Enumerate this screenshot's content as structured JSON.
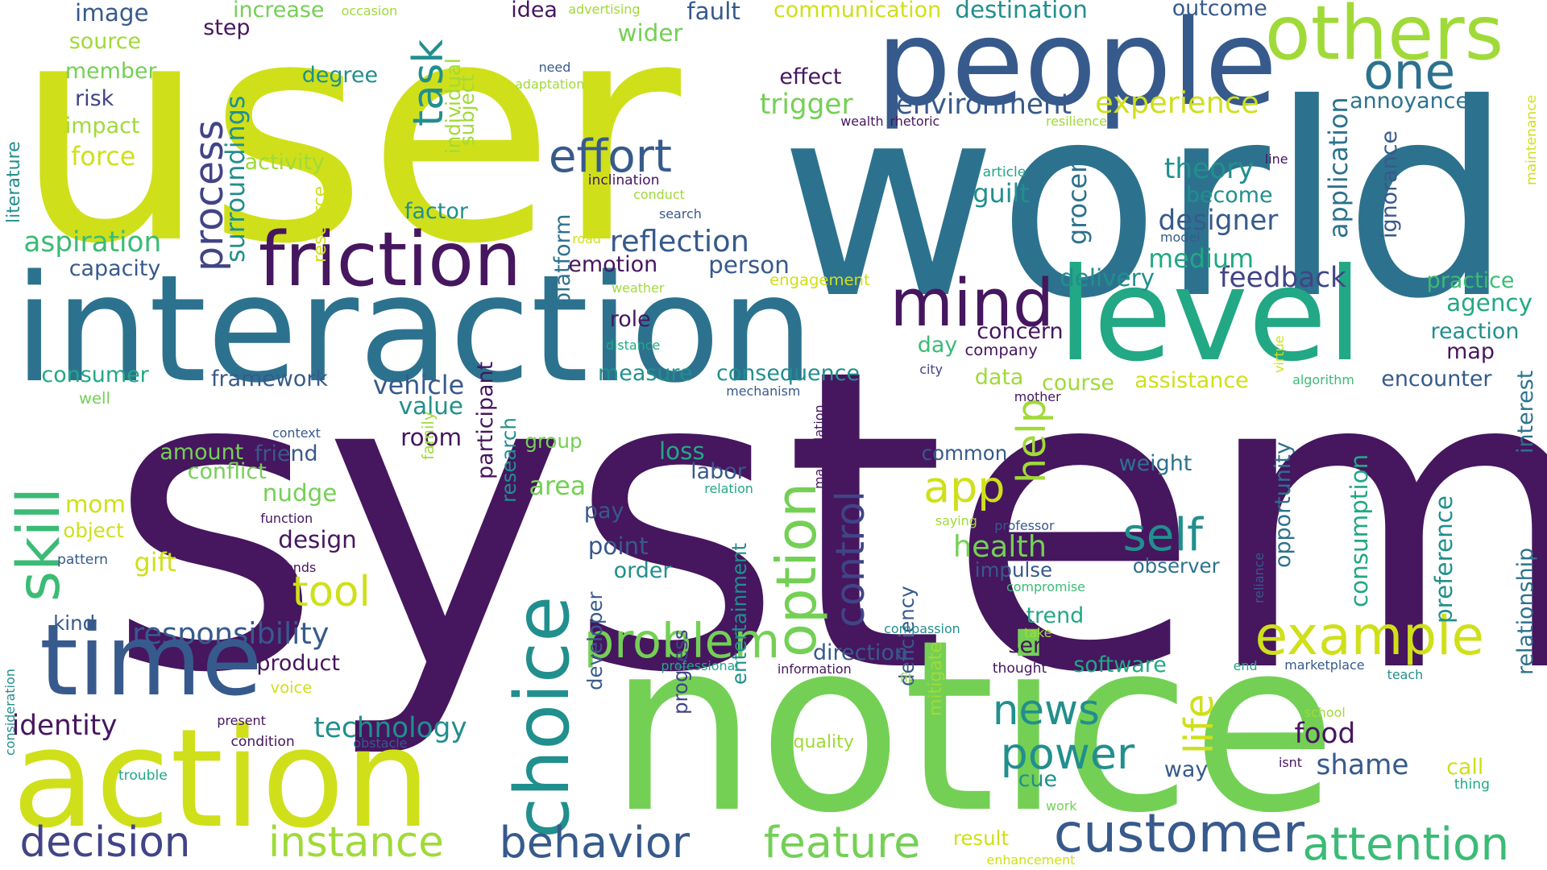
{
  "words": [
    {
      "text": "system",
      "color": "#46165f"
    },
    {
      "text": "user",
      "color": "#cfe01a"
    },
    {
      "text": "world",
      "color": "#2c728e"
    },
    {
      "text": "notice",
      "color": "#74d055"
    },
    {
      "text": "interaction",
      "color": "#2c728e"
    },
    {
      "text": "action",
      "color": "#cfe01a"
    },
    {
      "text": "people",
      "color": "#375a8c"
    },
    {
      "text": "level",
      "color": "#22a884"
    },
    {
      "text": "time",
      "color": "#375a8c"
    },
    {
      "text": "friction",
      "color": "#46165f"
    },
    {
      "text": "choice",
      "color": "#218f8d"
    },
    {
      "text": "others",
      "color": "#a0da39"
    },
    {
      "text": "mind",
      "color": "#46165f"
    },
    {
      "text": "customer",
      "color": "#375a8c"
    },
    {
      "text": "attention",
      "color": "#3bbb75"
    },
    {
      "text": "behavior",
      "color": "#375a8c"
    },
    {
      "text": "decision",
      "color": "#414487"
    },
    {
      "text": "instance",
      "color": "#a0da39"
    },
    {
      "text": "feature",
      "color": "#74d055"
    },
    {
      "text": "option",
      "color": "#74d055"
    },
    {
      "text": "example",
      "color": "#cfe01a"
    },
    {
      "text": "problem",
      "color": "#74d055"
    },
    {
      "text": "one",
      "color": "#2c728e"
    },
    {
      "text": "skill",
      "color": "#3bbb75"
    },
    {
      "text": "effort",
      "color": "#375a8c"
    },
    {
      "text": "power",
      "color": "#218f8d"
    },
    {
      "text": "news",
      "color": "#218f8d"
    },
    {
      "text": "self",
      "color": "#218f8d"
    },
    {
      "text": "app",
      "color": "#cfe01a"
    },
    {
      "text": "tool",
      "color": "#cfe01a"
    },
    {
      "text": "task",
      "color": "#218f8d"
    },
    {
      "text": "process",
      "color": "#414487"
    },
    {
      "text": "help",
      "color": "#a0da39"
    },
    {
      "text": "life",
      "color": "#cfe01a"
    },
    {
      "text": "control",
      "color": "#414487"
    },
    {
      "text": "responsibility",
      "color": "#375a8c"
    },
    {
      "text": "reflection",
      "color": "#375a8c"
    },
    {
      "text": "experience",
      "color": "#cfe01a"
    },
    {
      "text": "environment",
      "color": "#375a8c"
    },
    {
      "text": "health",
      "color": "#74d055"
    },
    {
      "text": "feedback",
      "color": "#414487"
    },
    {
      "text": "food",
      "color": "#46165f"
    },
    {
      "text": "shame",
      "color": "#375a8c"
    },
    {
      "text": "trigger",
      "color": "#74d055"
    },
    {
      "text": "surroundings",
      "color": "#218f8d"
    },
    {
      "text": "aspiration",
      "color": "#3bbb75"
    },
    {
      "text": "technology",
      "color": "#218f8d"
    },
    {
      "text": "identity",
      "color": "#46165f"
    },
    {
      "text": "theory",
      "color": "#218f8d"
    },
    {
      "text": "designer",
      "color": "#375a8c"
    },
    {
      "text": "guilt",
      "color": "#218f8d"
    },
    {
      "text": "become",
      "color": "#218f8d"
    },
    {
      "text": "medium",
      "color": "#22a884"
    },
    {
      "text": "delivery",
      "color": "#218f8d"
    },
    {
      "text": "grocery",
      "color": "#2c728e"
    },
    {
      "text": "application",
      "color": "#2c728e"
    },
    {
      "text": "ignorance",
      "color": "#375a8c"
    },
    {
      "text": "annoyance",
      "color": "#2c728e"
    },
    {
      "text": "outcome",
      "color": "#375a8c"
    },
    {
      "text": "destination",
      "color": "#218f8d"
    },
    {
      "text": "communication",
      "color": "#cfe01a"
    },
    {
      "text": "fault",
      "color": "#375a8c"
    },
    {
      "text": "idea",
      "color": "#46165f"
    },
    {
      "text": "advertising",
      "color": "#a0da39"
    },
    {
      "text": "occasion",
      "color": "#a0da39"
    },
    {
      "text": "increase",
      "color": "#74d055"
    },
    {
      "text": "image",
      "color": "#375a8c"
    },
    {
      "text": "source",
      "color": "#a0da39"
    },
    {
      "text": "member",
      "color": "#74d055"
    },
    {
      "text": "risk",
      "color": "#414487"
    },
    {
      "text": "impact",
      "color": "#a0da39"
    },
    {
      "text": "force",
      "color": "#cfe01a"
    },
    {
      "text": "step",
      "color": "#46165f"
    },
    {
      "text": "wider",
      "color": "#74d055"
    },
    {
      "text": "degree",
      "color": "#218f8d"
    },
    {
      "text": "activity",
      "color": "#a0da39"
    },
    {
      "text": "individual",
      "color": "#a0da39"
    },
    {
      "text": "subject",
      "color": "#a0da39"
    },
    {
      "text": "effect",
      "color": "#46165f"
    },
    {
      "text": "need",
      "color": "#375a8c"
    },
    {
      "text": "adaptation",
      "color": "#a0da39"
    },
    {
      "text": "literature",
      "color": "#218f8d"
    },
    {
      "text": "capacity",
      "color": "#375a8c"
    },
    {
      "text": "factor",
      "color": "#218f8d"
    },
    {
      "text": "inclination",
      "color": "#46165f"
    },
    {
      "text": "conduct",
      "color": "#a0da39"
    },
    {
      "text": "search",
      "color": "#375a8c"
    },
    {
      "text": "wealth",
      "color": "#46165f"
    },
    {
      "text": "rhetoric",
      "color": "#46165f"
    },
    {
      "text": "resilience",
      "color": "#a0da39"
    },
    {
      "text": "article",
      "color": "#22a884"
    },
    {
      "text": "line",
      "color": "#46165f"
    },
    {
      "text": "model",
      "color": "#375a8c"
    },
    {
      "text": "road",
      "color": "#cfe01a"
    },
    {
      "text": "emotion",
      "color": "#46165f"
    },
    {
      "text": "person",
      "color": "#375a8c"
    },
    {
      "text": "engagement",
      "color": "#cfe01a"
    },
    {
      "text": "weather",
      "color": "#a0da39"
    },
    {
      "text": "distance",
      "color": "#22a884"
    },
    {
      "text": "role",
      "color": "#46165f"
    },
    {
      "text": "measure",
      "color": "#218f8d"
    },
    {
      "text": "consequence",
      "color": "#218f8d"
    },
    {
      "text": "concern",
      "color": "#46165f"
    },
    {
      "text": "day",
      "color": "#3bbb75"
    },
    {
      "text": "company",
      "color": "#46165f"
    },
    {
      "text": "city",
      "color": "#414487"
    },
    {
      "text": "data",
      "color": "#a0da39"
    },
    {
      "text": "course",
      "color": "#a0da39"
    },
    {
      "text": "assistance",
      "color": "#cfe01a"
    },
    {
      "text": "mother",
      "color": "#46165f"
    },
    {
      "text": "virtue",
      "color": "#cfe01a"
    },
    {
      "text": "algorithm",
      "color": "#3bbb75"
    },
    {
      "text": "practice",
      "color": "#3bbb75"
    },
    {
      "text": "agency",
      "color": "#22a884"
    },
    {
      "text": "reaction",
      "color": "#218f8d"
    },
    {
      "text": "map",
      "color": "#46165f"
    },
    {
      "text": "encounter",
      "color": "#375a8c"
    },
    {
      "text": "maintenance",
      "color": "#cfe01a"
    },
    {
      "text": "interest",
      "color": "#2c728e"
    },
    {
      "text": "relationship",
      "color": "#2c728e"
    },
    {
      "text": "preference",
      "color": "#218f8d"
    },
    {
      "text": "consumption",
      "color": "#22a884"
    },
    {
      "text": "opportunity",
      "color": "#2c728e"
    },
    {
      "text": "weight",
      "color": "#2c728e"
    },
    {
      "text": "common",
      "color": "#375a8c"
    },
    {
      "text": "observer",
      "color": "#2c728e"
    },
    {
      "text": "impulse",
      "color": "#375a8c"
    },
    {
      "text": "compromise",
      "color": "#3bbb75"
    },
    {
      "text": "professor",
      "color": "#375a8c"
    },
    {
      "text": "saying",
      "color": "#a0da39"
    },
    {
      "text": "reliance",
      "color": "#375a8c"
    },
    {
      "text": "trend",
      "color": "#22a884"
    },
    {
      "text": "take",
      "color": "#a0da39"
    },
    {
      "text": "service",
      "color": "#46165f"
    },
    {
      "text": "software",
      "color": "#22a884"
    },
    {
      "text": "thought",
      "color": "#46165f"
    },
    {
      "text": "end",
      "color": "#22a884"
    },
    {
      "text": "marketplace",
      "color": "#375a8c"
    },
    {
      "text": "teach",
      "color": "#218f8d"
    },
    {
      "text": "school",
      "color": "#a0da39"
    },
    {
      "text": "isnt",
      "color": "#46165f"
    },
    {
      "text": "way",
      "color": "#375a8c"
    },
    {
      "text": "call",
      "color": "#cfe01a"
    },
    {
      "text": "thing",
      "color": "#22a884"
    },
    {
      "text": "cue",
      "color": "#218f8d"
    },
    {
      "text": "work",
      "color": "#74d055"
    },
    {
      "text": "result",
      "color": "#cfe01a"
    },
    {
      "text": "enhancement",
      "color": "#cfe01a"
    },
    {
      "text": "quality",
      "color": "#a0da39"
    },
    {
      "text": "mitigate",
      "color": "#a0da39"
    },
    {
      "text": "deficiency",
      "color": "#375a8c"
    },
    {
      "text": "entertainment",
      "color": "#218f8d"
    },
    {
      "text": "fit",
      "color": "#a0da39"
    },
    {
      "text": "information",
      "color": "#46165f"
    },
    {
      "text": "compassion",
      "color": "#218f8d"
    },
    {
      "text": "direction",
      "color": "#375a8c"
    },
    {
      "text": "manipulation",
      "color": "#46165f"
    },
    {
      "text": "progress",
      "color": "#414487"
    },
    {
      "text": "developer",
      "color": "#375a8c"
    },
    {
      "text": "professional",
      "color": "#22a884"
    },
    {
      "text": "participant",
      "color": "#46165f"
    },
    {
      "text": "research",
      "color": "#218f8d"
    },
    {
      "text": "order",
      "color": "#218f8d"
    },
    {
      "text": "point",
      "color": "#375a8c"
    },
    {
      "text": "pay",
      "color": "#375a8c"
    },
    {
      "text": "relation",
      "color": "#22a884"
    },
    {
      "text": "labor",
      "color": "#375a8c"
    },
    {
      "text": "loss",
      "color": "#22a884"
    },
    {
      "text": "area",
      "color": "#74d055"
    },
    {
      "text": "group",
      "color": "#74d055"
    },
    {
      "text": "platform",
      "color": "#2c728e"
    },
    {
      "text": "mechanism",
      "color": "#375a8c"
    },
    {
      "text": "vehicle",
      "color": "#375a8c"
    },
    {
      "text": "value",
      "color": "#218f8d"
    },
    {
      "text": "room",
      "color": "#46165f"
    },
    {
      "text": "resource",
      "color": "#cfe01a"
    },
    {
      "text": "framework",
      "color": "#375a8c"
    },
    {
      "text": "consumer",
      "color": "#22a884"
    },
    {
      "text": "well",
      "color": "#74d055"
    },
    {
      "text": "context",
      "color": "#375a8c"
    },
    {
      "text": "amount",
      "color": "#74d055"
    },
    {
      "text": "friend",
      "color": "#375a8c"
    },
    {
      "text": "conflict",
      "color": "#74d055"
    },
    {
      "text": "nudge",
      "color": "#74d055"
    },
    {
      "text": "mom",
      "color": "#cfe01a"
    },
    {
      "text": "family",
      "color": "#a0da39"
    },
    {
      "text": "function",
      "color": "#46165f"
    },
    {
      "text": "object",
      "color": "#cfe01a"
    },
    {
      "text": "design",
      "color": "#46165f"
    },
    {
      "text": "gift",
      "color": "#cfe01a"
    },
    {
      "text": "pattern",
      "color": "#375a8c"
    },
    {
      "text": "tends",
      "color": "#46165f"
    },
    {
      "text": "kind",
      "color": "#375a8c"
    },
    {
      "text": "product",
      "color": "#46165f"
    },
    {
      "text": "voice",
      "color": "#cfe01a"
    },
    {
      "text": "present",
      "color": "#46165f"
    },
    {
      "text": "condition",
      "color": "#46165f"
    },
    {
      "text": "obstacle",
      "color": "#375a8c"
    },
    {
      "text": "trouble",
      "color": "#22a884"
    },
    {
      "text": "consideration",
      "color": "#218f8d"
    }
  ]
}
